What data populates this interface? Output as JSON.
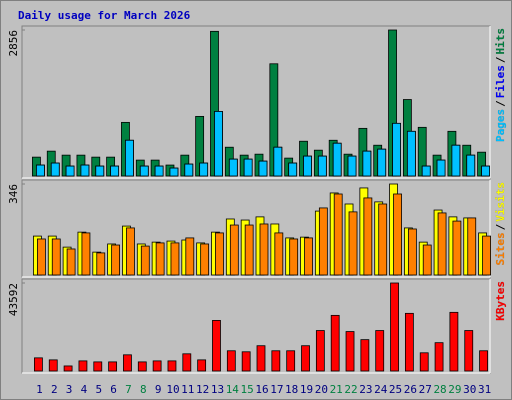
{
  "chart_data": [
    {
      "type": "bar",
      "title": "Daily usage for March 2026",
      "ylim": [
        0,
        2856
      ],
      "yticks": [
        2856
      ],
      "legend_separator": "/",
      "series": [
        {
          "name": "Hits",
          "color": "#008040",
          "values": [
            369,
            486,
            408,
            408,
            369,
            369,
            1049,
            311,
            311,
            214,
            408,
            1166,
            2830,
            563,
            408,
            427,
            2195,
            350,
            680,
            505,
            699,
            427,
            932,
            602,
            2856,
            1496,
            952,
            408,
            874,
            602,
            466
          ]
        },
        {
          "name": "Files",
          "color": "#0000ff",
          "values": [
            214,
            253,
            194,
            214,
            194,
            194,
            699,
            194,
            194,
            155,
            233,
            253,
            1263,
            330,
            330,
            291,
            563,
            253,
            389,
            389,
            641,
            389,
            486,
            525,
            1030,
            874,
            194,
            311,
            602,
            408,
            194
          ]
        },
        {
          "name": "Pages",
          "color": "#00c0ff",
          "values": [
            214,
            253,
            194,
            214,
            194,
            194,
            699,
            194,
            194,
            155,
            233,
            253,
            1263,
            330,
            330,
            291,
            563,
            253,
            389,
            389,
            641,
            389,
            486,
            525,
            1030,
            874,
            194,
            311,
            602,
            408,
            194
          ]
        }
      ]
    },
    {
      "type": "bar",
      "ylim": [
        0,
        346
      ],
      "yticks": [
        346
      ],
      "legend_separator": "/",
      "series": [
        {
          "name": "Visits",
          "color": "#ffff00",
          "values": [
            148,
            148,
            106,
            163,
            87,
            118,
            186,
            118,
            125,
            129,
            133,
            122,
            163,
            213,
            209,
            221,
            194,
            141,
            144,
            243,
            312,
            270,
            331,
            278,
            346,
            179,
            125,
            247,
            221,
            217,
            160
          ]
        },
        {
          "name": "Sites",
          "color": "#ff8000",
          "values": [
            137,
            137,
            99,
            160,
            84,
            114,
            179,
            110,
            122,
            122,
            141,
            118,
            160,
            190,
            190,
            194,
            160,
            137,
            141,
            255,
            308,
            240,
            293,
            270,
            308,
            175,
            114,
            236,
            205,
            217,
            148
          ]
        }
      ]
    },
    {
      "type": "bar",
      "ylim": [
        0,
        43592
      ],
      "yticks": [
        43592
      ],
      "categories": [
        1,
        2,
        3,
        4,
        5,
        6,
        7,
        8,
        9,
        10,
        11,
        12,
        13,
        14,
        15,
        16,
        17,
        18,
        19,
        20,
        21,
        22,
        23,
        24,
        25,
        26,
        27,
        28,
        29,
        30,
        31
      ],
      "category_color": "#000080",
      "highlight_categories": [
        7,
        8,
        14,
        15,
        21,
        22,
        28,
        29
      ],
      "highlight_color": "#008040",
      "series": [
        {
          "name": "KBytes",
          "color": "#ff0000",
          "values": [
            6514,
            5512,
            2505,
            5011,
            4510,
            4510,
            8017,
            4510,
            5011,
            5011,
            8518,
            5512,
            25053,
            10021,
            9520,
            12526,
            10021,
            10021,
            12526,
            20042,
            27558,
            19541,
            15533,
            20042,
            43592,
            28560,
            9019,
            14030,
            29061,
            20042,
            10021
          ]
        }
      ]
    }
  ]
}
